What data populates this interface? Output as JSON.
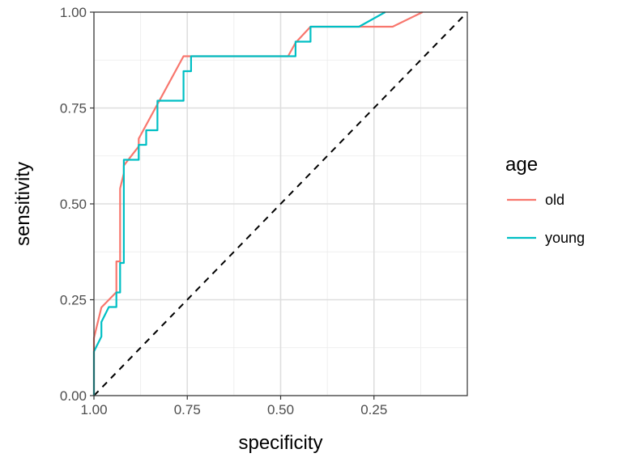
{
  "chart_data": {
    "type": "line",
    "title": "",
    "xlabel": "specificity",
    "ylabel": "sensitivity",
    "x_reversed": true,
    "xlim": [
      1.0,
      0.0
    ],
    "ylim": [
      0.0,
      1.0
    ],
    "x_ticks": [
      1.0,
      0.75,
      0.5,
      0.25
    ],
    "x_tick_labels": [
      "1.00",
      "0.75",
      "0.50",
      "0.25"
    ],
    "y_ticks": [
      0.0,
      0.25,
      0.5,
      0.75,
      1.0
    ],
    "y_tick_labels": [
      "0.00",
      "0.25",
      "0.50",
      "0.75",
      "1.00"
    ],
    "grid": true,
    "legend": {
      "title": "age",
      "position": "right",
      "entries": [
        {
          "label": "old",
          "color": "#F8766D"
        },
        {
          "label": "young",
          "color": "#00BFC4"
        }
      ]
    },
    "reference_line": {
      "style": "dashed",
      "color": "#000000",
      "from": [
        1.0,
        0.0
      ],
      "to": [
        0.0,
        1.0
      ]
    },
    "series": [
      {
        "name": "old",
        "color": "#F8766D",
        "x": [
          1.0,
          1.0,
          0.99,
          0.98,
          0.94,
          0.94,
          0.93,
          0.93,
          0.92,
          0.92,
          0.88,
          0.88,
          0.76,
          0.48,
          0.46,
          0.42,
          0.42,
          0.38,
          0.2,
          0.12
        ],
        "y": [
          0.0,
          0.15,
          0.19,
          0.23,
          0.27,
          0.35,
          0.35,
          0.54,
          0.58,
          0.6,
          0.65,
          0.67,
          0.885,
          0.885,
          0.92,
          0.962,
          0.962,
          0.962,
          0.962,
          1.0
        ]
      },
      {
        "name": "young",
        "color": "#00BFC4",
        "x": [
          1.0,
          1.0,
          0.98,
          0.98,
          0.96,
          0.94,
          0.94,
          0.93,
          0.93,
          0.92,
          0.92,
          0.92,
          0.88,
          0.88,
          0.86,
          0.86,
          0.83,
          0.83,
          0.76,
          0.76,
          0.74,
          0.74,
          0.46,
          0.46,
          0.44,
          0.44,
          0.42,
          0.42,
          0.42,
          0.37,
          0.37,
          0.29,
          0.22,
          0.22
        ],
        "y": [
          0.0,
          0.115,
          0.154,
          0.192,
          0.231,
          0.231,
          0.269,
          0.269,
          0.346,
          0.346,
          0.385,
          0.615,
          0.615,
          0.654,
          0.654,
          0.692,
          0.692,
          0.769,
          0.769,
          0.846,
          0.846,
          0.885,
          0.885,
          0.923,
          0.923,
          0.923,
          0.923,
          0.962,
          0.962,
          0.962,
          0.962,
          0.962,
          1.0,
          1.0
        ]
      }
    ]
  }
}
